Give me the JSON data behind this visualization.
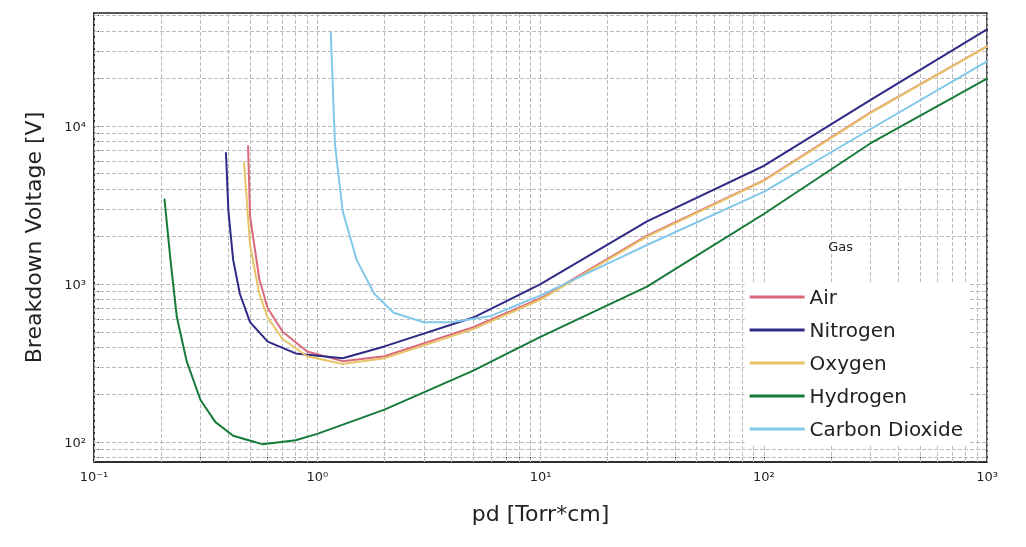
{
  "chart_data": {
    "type": "line",
    "xlabel": "pd [Torr*cm]",
    "ylabel": "Breakdown Voltage [V]",
    "legend_title": "Gas",
    "legend": "bottom right",
    "grid": true,
    "log": "xy",
    "line_style": "solid",
    "marker": "none",
    "xlim": [
      0.1,
      1000
    ],
    "ylim": [
      75,
      52000
    ],
    "xticks": [
      {
        "value": 0.1,
        "label": "10⁻¹"
      },
      {
        "value": 0.2,
        "label": null
      },
      {
        "value": 0.3,
        "label": null
      },
      {
        "value": 0.4,
        "label": null
      },
      {
        "value": 0.5,
        "label": null
      },
      {
        "value": 0.6,
        "label": null
      },
      {
        "value": 0.7,
        "label": null
      },
      {
        "value": 0.8,
        "label": null
      },
      {
        "value": 0.9,
        "label": null
      },
      {
        "value": 1,
        "label": "10⁰"
      },
      {
        "value": 2,
        "label": null
      },
      {
        "value": 3,
        "label": null
      },
      {
        "value": 4,
        "label": null
      },
      {
        "value": 5,
        "label": null
      },
      {
        "value": 6,
        "label": null
      },
      {
        "value": 7,
        "label": null
      },
      {
        "value": 8,
        "label": null
      },
      {
        "value": 9,
        "label": null
      },
      {
        "value": 10,
        "label": "10¹"
      },
      {
        "value": 20,
        "label": null
      },
      {
        "value": 30,
        "label": null
      },
      {
        "value": 40,
        "label": null
      },
      {
        "value": 50,
        "label": null
      },
      {
        "value": 60,
        "label": null
      },
      {
        "value": 70,
        "label": null
      },
      {
        "value": 80,
        "label": null
      },
      {
        "value": 90,
        "label": null
      },
      {
        "value": 100,
        "label": "10²"
      },
      {
        "value": 200,
        "label": null
      },
      {
        "value": 300,
        "label": null
      },
      {
        "value": 400,
        "label": null
      },
      {
        "value": 500,
        "label": null
      },
      {
        "value": 600,
        "label": null
      },
      {
        "value": 700,
        "label": null
      },
      {
        "value": 800,
        "label": null
      },
      {
        "value": 900,
        "label": null
      },
      {
        "value": 1000,
        "label": "10³"
      }
    ],
    "yticks": [
      {
        "value": 80,
        "label": null
      },
      {
        "value": 90,
        "label": null
      },
      {
        "value": 100,
        "label": "10²"
      },
      {
        "value": 200,
        "label": null
      },
      {
        "value": 300,
        "label": null
      },
      {
        "value": 400,
        "label": null
      },
      {
        "value": 500,
        "label": null
      },
      {
        "value": 600,
        "label": null
      },
      {
        "value": 700,
        "label": null
      },
      {
        "value": 800,
        "label": null
      },
      {
        "value": 900,
        "label": null
      },
      {
        "value": 1000,
        "label": "10³"
      },
      {
        "value": 2000,
        "label": null
      },
      {
        "value": 3000,
        "label": null
      },
      {
        "value": 4000,
        "label": null
      },
      {
        "value": 5000,
        "label": null
      },
      {
        "value": 6000,
        "label": null
      },
      {
        "value": 7000,
        "label": null
      },
      {
        "value": 8000,
        "label": null
      },
      {
        "value": 9000,
        "label": null
      },
      {
        "value": 10000,
        "label": "10⁴"
      },
      {
        "value": 20000,
        "label": null
      },
      {
        "value": 30000,
        "label": null
      },
      {
        "value": 40000,
        "label": null
      },
      {
        "value": 50000,
        "label": null
      }
    ],
    "series": [
      {
        "name": "Air",
        "color": "#d9687a",
        "x": [
          0.49,
          0.5,
          0.55,
          0.6,
          0.7,
          0.9,
          1.3,
          2,
          5,
          10,
          30,
          100,
          300,
          1000
        ],
        "values": [
          7450,
          2700,
          1080,
          705,
          500,
          375,
          326,
          350,
          535,
          815,
          2030,
          4540,
          12200,
          32000
        ]
      },
      {
        "name": "Nitrogen",
        "color": "#2e2a86",
        "x": [
          0.39,
          0.4,
          0.42,
          0.45,
          0.5,
          0.6,
          0.8,
          1.3,
          2,
          5,
          10,
          30,
          100,
          300,
          1000
        ],
        "values": [
          6770,
          2900,
          1430,
          870,
          575,
          433,
          365,
          340,
          404,
          615,
          1000,
          2500,
          5600,
          14600,
          41000
        ]
      },
      {
        "name": "Oxygen",
        "color": "#e8c468",
        "x": [
          0.47,
          0.5,
          0.55,
          0.6,
          0.7,
          0.9,
          1.3,
          2,
          5,
          10,
          30,
          100,
          300,
          1000
        ],
        "values": [
          5860,
          1770,
          870,
          615,
          450,
          350,
          313,
          340,
          520,
          800,
          2000,
          4500,
          12100,
          32000
        ]
      },
      {
        "name": "Hydrogen",
        "color": "#177a3a",
        "x": [
          0.207,
          0.22,
          0.235,
          0.26,
          0.3,
          0.35,
          0.42,
          0.57,
          0.8,
          1,
          2,
          5,
          10,
          30,
          100,
          300,
          1000
        ],
        "values": [
          3430,
          1430,
          620,
          326,
          185,
          134,
          110,
          97,
          103,
          113,
          161,
          284,
          464,
          966,
          2780,
          7770,
          20000
        ]
      },
      {
        "name": "Carbon Dioxide",
        "color": "#82c8ea",
        "x": [
          1.15,
          1.2,
          1.3,
          1.5,
          1.8,
          2.2,
          3,
          4,
          6,
          10,
          30,
          100,
          300,
          1000
        ],
        "values": [
          39000,
          7700,
          2900,
          1430,
          870,
          660,
          575,
          575,
          630,
          850,
          1770,
          3840,
          9560,
          25700
        ]
      }
    ]
  }
}
